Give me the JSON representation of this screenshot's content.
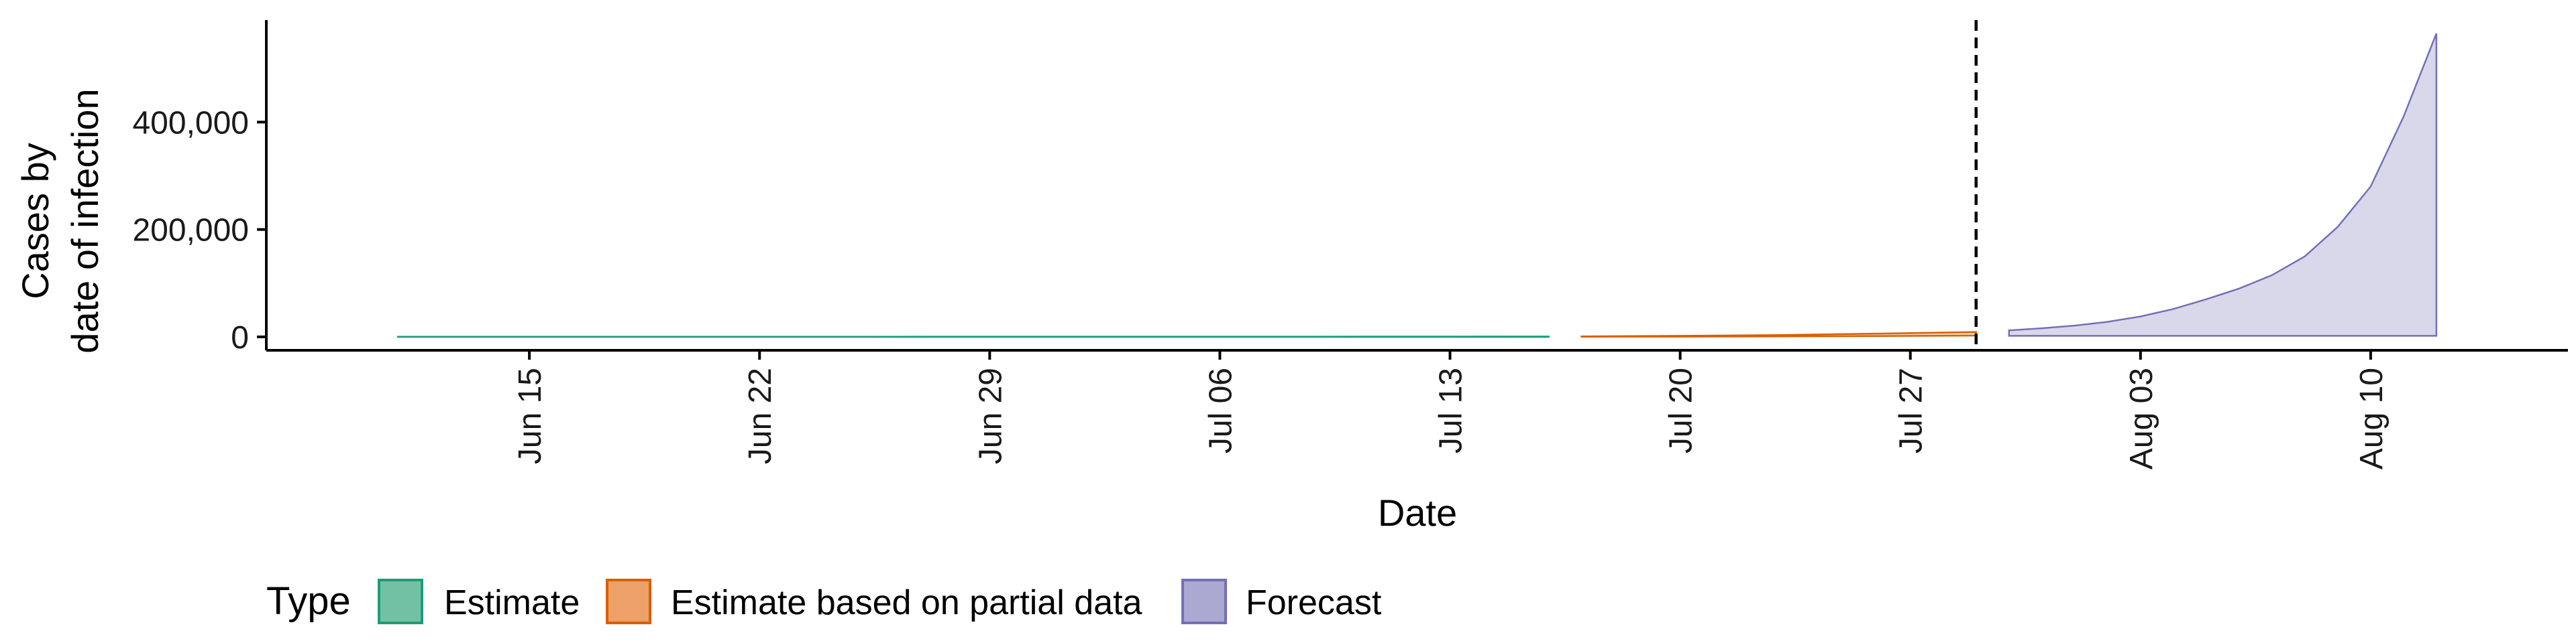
{
  "chart_data": {
    "type": "area",
    "xlabel": "Date",
    "ylabel_lines": [
      "Cases by",
      "date of infection"
    ],
    "x_ticks": [
      "Jun 15",
      "Jun 22",
      "Jun 29",
      "Jul 06",
      "Jul 13",
      "Jul 20",
      "Jul 27",
      "Aug 03",
      "Aug 10"
    ],
    "x_range": [
      "2020-06-07",
      "2020-08-16"
    ],
    "y_ticks": [
      0,
      200000,
      400000
    ],
    "y_tick_labels": [
      "0",
      "200,000",
      "400,000"
    ],
    "ylim": [
      -25000,
      590000
    ],
    "forecast_cutoff": "2020-07-29",
    "legend": {
      "title": "Type",
      "position": "bottom",
      "items": [
        {
          "label": "Estimate",
          "fill": "#72C1A4",
          "stroke": "#1B9E77"
        },
        {
          "label": "Estimate based on partial data",
          "fill": "#EDA068",
          "stroke": "#D95F02"
        },
        {
          "label": "Forecast",
          "fill": "#ABA8D2",
          "stroke": "#7570B3"
        }
      ]
    },
    "series": [
      {
        "name": "Estimate",
        "color": "#1B9E77",
        "x": [
          "2020-06-11",
          "2020-06-18",
          "2020-06-25",
          "2020-07-02",
          "2020-07-09",
          "2020-07-16"
        ],
        "lower": [
          0,
          0,
          0,
          0,
          0,
          0
        ],
        "upper": [
          200,
          250,
          300,
          400,
          500,
          700
        ]
      },
      {
        "name": "Estimate based on partial data",
        "color": "#D95F02",
        "x": [
          "2020-07-17",
          "2020-07-20",
          "2020-07-23",
          "2020-07-26",
          "2020-07-29"
        ],
        "lower": [
          300,
          500,
          900,
          1600,
          2500
        ],
        "upper": [
          1000,
          2000,
          3500,
          6000,
          9000
        ]
      },
      {
        "name": "Forecast",
        "color": "#7570B3",
        "x": [
          "2020-07-30",
          "2020-07-31",
          "2020-08-01",
          "2020-08-02",
          "2020-08-03",
          "2020-08-04",
          "2020-08-05",
          "2020-08-06",
          "2020-08-07",
          "2020-08-08",
          "2020-08-09",
          "2020-08-10",
          "2020-08-11",
          "2020-08-12"
        ],
        "lower": [
          2000,
          2000,
          2000,
          2000,
          2000,
          2000,
          2000,
          2000,
          2000,
          2000,
          2000,
          2000,
          2000,
          2000
        ],
        "upper": [
          12000,
          16000,
          21000,
          28000,
          38000,
          52000,
          70000,
          90000,
          115000,
          150000,
          205000,
          280000,
          410000,
          565000
        ]
      }
    ]
  }
}
